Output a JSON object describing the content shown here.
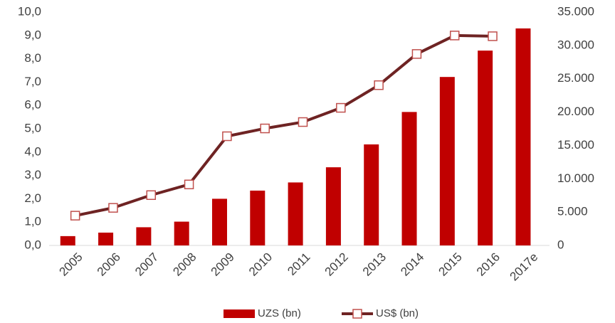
{
  "chart_data": {
    "type": "bar-line",
    "categories": [
      "2005",
      "2006",
      "2007",
      "2008",
      "2009",
      "2010",
      "2011",
      "2012",
      "2013",
      "2014",
      "2015",
      "2016",
      "2017e"
    ],
    "series": [
      {
        "name": "UZS (bn)",
        "type": "bar",
        "axis": "y",
        "color": "#c00000",
        "values": [
          0.4,
          0.55,
          0.78,
          1.02,
          2.0,
          2.35,
          2.7,
          3.35,
          4.33,
          5.72,
          7.22,
          8.35,
          9.3
        ]
      },
      {
        "name": "US$ (bn)",
        "type": "line",
        "axis": "y2",
        "color": "#6e2323",
        "marker_edge": "#c0504d",
        "values": [
          4470,
          5640,
          7550,
          9150,
          16380,
          17550,
          18510,
          20640,
          24040,
          28720,
          31490,
          31380,
          null
        ]
      }
    ],
    "ylim": [
      0,
      10
    ],
    "yticks": [
      {
        "value": 0,
        "label": "0,0"
      },
      {
        "value": 1,
        "label": "1,0"
      },
      {
        "value": 2,
        "label": "2,0"
      },
      {
        "value": 3,
        "label": "3,0"
      },
      {
        "value": 4,
        "label": "4,0"
      },
      {
        "value": 5,
        "label": "5,0"
      },
      {
        "value": 6,
        "label": "6,0"
      },
      {
        "value": 7,
        "label": "7,0"
      },
      {
        "value": 8,
        "label": "8,0"
      },
      {
        "value": 9,
        "label": "9,0"
      },
      {
        "value": 10,
        "label": "10,0"
      }
    ],
    "y2lim": [
      0,
      35000
    ],
    "y2ticks": [
      0,
      {
        "value": 5000,
        "label": "5.000"
      },
      {
        "value": 10000,
        "label": "10.000"
      },
      {
        "value": 15000,
        "label": "15.000"
      },
      {
        "value": 20000,
        "label": "20.000"
      },
      {
        "value": 25000,
        "label": "25.000"
      },
      {
        "value": 30000,
        "label": "30.000"
      },
      {
        "value": 35000,
        "label": "35.000"
      }
    ],
    "legend": "bottom"
  }
}
